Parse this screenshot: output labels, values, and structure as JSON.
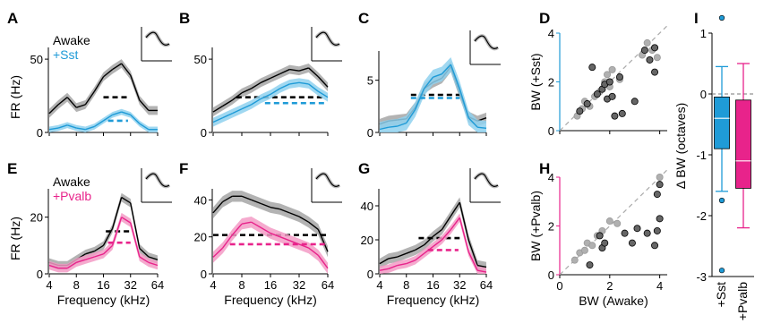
{
  "colors": {
    "awake": "#000000",
    "awake_band": "#a6a6a6",
    "sst": "#1f9bd7",
    "sst_band": "#8fd1ee",
    "pvalb": "#e8238b",
    "pvalb_band": "#f39bc6",
    "dots_gray": "#b0b0b0",
    "dots_dark": "#666666"
  },
  "chart_data": [
    {
      "panel": "A",
      "type": "line",
      "ylabel": "FR (Hz)",
      "xlabel": "",
      "ylim": [
        0,
        58
      ],
      "xlim": [
        4,
        64
      ],
      "yticks": [
        "0",
        "50"
      ],
      "xticks": [],
      "legend": [
        "Awake",
        "+Sst"
      ],
      "x_khz": [
        4,
        5.04,
        6.35,
        8,
        10.08,
        12.7,
        16,
        20.16,
        25.4,
        32,
        40.3,
        50.8,
        64
      ],
      "series": [
        {
          "name": "Awake",
          "color": "#000000",
          "band": "#a6a6a6",
          "values": [
            13,
            19,
            24,
            17,
            19,
            28,
            38,
            43,
            47,
            39,
            22,
            15,
            15
          ],
          "err": 3,
          "thresh": [
            16,
            31
          ],
          "thresh_val": 24
        },
        {
          "name": "+Sst",
          "color": "#1f9bd7",
          "band": "#8fd1ee",
          "values": [
            2,
            3,
            5,
            3,
            2,
            4,
            8,
            12,
            14,
            12,
            6,
            2,
            2
          ],
          "err": 2,
          "thresh": [
            18,
            30
          ],
          "thresh_val": 8
        }
      ]
    },
    {
      "panel": "B",
      "type": "line",
      "ylabel": "",
      "xlabel": "",
      "ylim": [
        0,
        58
      ],
      "xlim": [
        4,
        64
      ],
      "yticks": [
        "0",
        "50"
      ],
      "xticks": [],
      "legend": [],
      "x_khz": [
        4,
        5.04,
        6.35,
        8,
        10.08,
        12.7,
        16,
        20.16,
        25.4,
        32,
        40.3,
        50.8,
        64
      ],
      "series": [
        {
          "name": "Awake",
          "color": "#000000",
          "band": "#a6a6a6",
          "values": [
            14,
            18,
            22,
            27,
            30,
            34,
            37,
            40,
            43,
            42,
            44,
            38,
            31
          ],
          "err": 3,
          "thresh": [
            7,
            60
          ],
          "thresh_val": 24
        },
        {
          "name": "+Sst",
          "color": "#1f9bd7",
          "band": "#8fd1ee",
          "values": [
            7,
            10,
            13,
            16,
            19,
            23,
            26,
            30,
            33,
            34,
            33,
            28,
            24
          ],
          "err": 3,
          "thresh": [
            14,
            62
          ],
          "thresh_val": 20
        }
      ]
    },
    {
      "panel": "C",
      "type": "line",
      "ylabel": "",
      "xlabel": "",
      "ylim": [
        0,
        7.8
      ],
      "xlim": [
        4,
        64
      ],
      "yticks": [
        "0",
        "5"
      ],
      "xticks": [],
      "legend": [],
      "x_khz": [
        4,
        5.04,
        6.35,
        8,
        10.08,
        12.7,
        16,
        20.16,
        25.4,
        32,
        40.3,
        50.8,
        64
      ],
      "series": [
        {
          "name": "Awake",
          "color": "#000000",
          "band": "#a6a6a6",
          "values": [
            0.8,
            1.1,
            1.2,
            1.3,
            2.4,
            4.2,
            4.8,
            5.2,
            6.3,
            3.8,
            1.5,
            1.1,
            1.4
          ],
          "err": 0.5,
          "thresh": [
            9,
            32
          ],
          "thresh_val": 3.6
        },
        {
          "name": "+Sst",
          "color": "#1f9bd7",
          "band": "#8fd1ee",
          "values": [
            0.3,
            0.5,
            0.6,
            0.9,
            2.2,
            4.2,
            5.3,
            5.6,
            6.5,
            4.2,
            1.4,
            0.5,
            0.4
          ],
          "err": 0.7,
          "thresh": [
            9,
            32
          ],
          "thresh_val": 3.3
        }
      ]
    },
    {
      "panel": "E",
      "type": "line",
      "ylabel": "FR (Hz)",
      "xlabel": "Frequency (kHz)",
      "ylim": [
        0,
        30
      ],
      "xlim": [
        4,
        64
      ],
      "yticks": [
        "0",
        "20"
      ],
      "xticks": [
        "4",
        "8",
        "16",
        "32",
        "64"
      ],
      "legend": [
        "Awake",
        "+Pvalb"
      ],
      "x_khz": [
        4,
        5.04,
        6.35,
        8,
        10.08,
        12.7,
        16,
        20.16,
        25.4,
        32,
        40.3,
        50.8,
        64
      ],
      "series": [
        {
          "name": "Awake",
          "color": "#000000",
          "band": "#a6a6a6",
          "values": [
            4,
            3,
            3,
            5,
            7,
            8,
            10,
            16,
            27,
            25,
            9,
            6,
            5
          ],
          "err": 1.5,
          "thresh": [
            17,
            32
          ],
          "thresh_val": 15
        },
        {
          "name": "+Pvalb",
          "color": "#e8238b",
          "band": "#f39bc6",
          "values": [
            3,
            2,
            2,
            4,
            5,
            6,
            7,
            10,
            20,
            18,
            6,
            4,
            3
          ],
          "err": 1.5,
          "thresh": [
            18,
            32
          ],
          "thresh_val": 11
        }
      ]
    },
    {
      "panel": "F",
      "type": "line",
      "ylabel": "",
      "xlabel": "Frequency (kHz)",
      "ylim": [
        0,
        46
      ],
      "xlim": [
        4,
        64
      ],
      "yticks": [
        "0",
        "20",
        "40"
      ],
      "xticks": [
        "4",
        "8",
        "16",
        "32",
        "64"
      ],
      "legend": [],
      "x_khz": [
        4,
        5.04,
        6.35,
        8,
        10.08,
        12.7,
        16,
        20.16,
        25.4,
        32,
        40.3,
        50.8,
        64
      ],
      "series": [
        {
          "name": "Awake",
          "color": "#000000",
          "band": "#a6a6a6",
          "values": [
            33,
            39,
            42,
            42,
            40,
            38,
            36,
            35,
            33,
            31,
            28,
            24,
            12
          ],
          "err": 3,
          "thresh": [
            4,
            62
          ],
          "thresh_val": 21
        },
        {
          "name": "+Pvalb",
          "color": "#e8238b",
          "band": "#f39bc6",
          "values": [
            9,
            14,
            21,
            27,
            28,
            25,
            22,
            20,
            18,
            16,
            14,
            10,
            3
          ],
          "err": 3,
          "thresh": [
            6,
            62
          ],
          "thresh_val": 16
        }
      ]
    },
    {
      "panel": "G",
      "type": "line",
      "ylabel": "",
      "xlabel": "Frequency (kHz)",
      "ylim": [
        0,
        50
      ],
      "xlim": [
        4,
        64
      ],
      "yticks": [
        "0",
        "20",
        "40"
      ],
      "xticks": [
        "4",
        "8",
        "16",
        "32",
        "64"
      ],
      "legend": [],
      "x_khz": [
        4,
        5.04,
        6.35,
        8,
        10.08,
        12.7,
        16,
        20.16,
        25.4,
        32,
        40.3,
        50.8,
        64
      ],
      "series": [
        {
          "name": "Awake",
          "color": "#000000",
          "band": "#a6a6a6",
          "values": [
            6,
            9,
            10,
            12,
            14,
            17,
            22,
            26,
            34,
            42,
            20,
            5,
            4
          ],
          "err": 3,
          "thresh": [
            11,
            32
          ],
          "thresh_val": 21
        },
        {
          "name": "+Pvalb",
          "color": "#e8238b",
          "band": "#f39bc6",
          "values": [
            2,
            3,
            5,
            6,
            8,
            12,
            16,
            20,
            26,
            33,
            13,
            2,
            1
          ],
          "err": 2.5,
          "thresh": [
            14,
            31
          ],
          "thresh_val": 14
        }
      ]
    },
    {
      "panel": "D",
      "type": "scatter",
      "xlabel": "",
      "ylabel": "BW (+Sst)",
      "xlim": [
        0,
        4.3
      ],
      "ylim": [
        0,
        4
      ],
      "xticks": [],
      "yticks": [
        "0",
        "2",
        "4"
      ],
      "color": "#1f9bd7",
      "points": [
        {
          "x": 0.7,
          "y": 0.6,
          "dark": false
        },
        {
          "x": 0.9,
          "y": 0.9,
          "dark": false
        },
        {
          "x": 1.0,
          "y": 1.2,
          "dark": false
        },
        {
          "x": 1.2,
          "y": 1.0,
          "dark": false
        },
        {
          "x": 1.4,
          "y": 1.4,
          "dark": false
        },
        {
          "x": 1.6,
          "y": 1.6,
          "dark": false
        },
        {
          "x": 1.8,
          "y": 2.0,
          "dark": false
        },
        {
          "x": 2.0,
          "y": 1.8,
          "dark": false
        },
        {
          "x": 2.1,
          "y": 2.5,
          "dark": false
        },
        {
          "x": 2.4,
          "y": 2.1,
          "dark": false
        },
        {
          "x": 3.3,
          "y": 3.1,
          "dark": false
        },
        {
          "x": 3.5,
          "y": 3.6,
          "dark": false
        },
        {
          "x": 3.7,
          "y": 3.3,
          "dark": false
        },
        {
          "x": 3.9,
          "y": 3.0,
          "dark": false
        },
        {
          "x": 1.9,
          "y": 2.3,
          "dark": false
        },
        {
          "x": 0.8,
          "y": 0.8,
          "dark": true
        },
        {
          "x": 1.1,
          "y": 1.1,
          "dark": true
        },
        {
          "x": 1.3,
          "y": 2.6,
          "dark": true
        },
        {
          "x": 1.5,
          "y": 1.5,
          "dark": true
        },
        {
          "x": 1.7,
          "y": 1.7,
          "dark": true
        },
        {
          "x": 1.8,
          "y": 1.9,
          "dark": true
        },
        {
          "x": 1.9,
          "y": 1.3,
          "dark": true
        },
        {
          "x": 2.0,
          "y": 2.0,
          "dark": true
        },
        {
          "x": 2.1,
          "y": 1.4,
          "dark": true
        },
        {
          "x": 2.2,
          "y": 0.6,
          "dark": true
        },
        {
          "x": 2.4,
          "y": 2.2,
          "dark": true
        },
        {
          "x": 2.5,
          "y": 0.7,
          "dark": true
        },
        {
          "x": 3.0,
          "y": 1.2,
          "dark": true
        },
        {
          "x": 3.4,
          "y": 3.3,
          "dark": true
        },
        {
          "x": 3.6,
          "y": 2.9,
          "dark": true
        },
        {
          "x": 3.8,
          "y": 2.4,
          "dark": true
        },
        {
          "x": 3.8,
          "y": 3.4,
          "dark": true
        }
      ]
    },
    {
      "panel": "H",
      "type": "scatter",
      "xlabel": "BW (Awake)",
      "ylabel": "BW (+Pvalb)",
      "xlim": [
        0,
        4.3
      ],
      "ylim": [
        0,
        4
      ],
      "xticks": [
        "0",
        "2",
        "4"
      ],
      "yticks": [
        "0",
        "2",
        "4"
      ],
      "color": "#e8238b",
      "points": [
        {
          "x": 0.6,
          "y": 0.6,
          "dark": false
        },
        {
          "x": 0.8,
          "y": 0.9,
          "dark": false
        },
        {
          "x": 1.0,
          "y": 1.0,
          "dark": false
        },
        {
          "x": 1.1,
          "y": 1.3,
          "dark": false
        },
        {
          "x": 1.3,
          "y": 1.2,
          "dark": false
        },
        {
          "x": 1.5,
          "y": 1.6,
          "dark": false
        },
        {
          "x": 1.7,
          "y": 1.8,
          "dark": false
        },
        {
          "x": 2.0,
          "y": 2.2,
          "dark": false
        },
        {
          "x": 2.3,
          "y": 2.1,
          "dark": false
        },
        {
          "x": 4.0,
          "y": 4.0,
          "dark": false
        },
        {
          "x": 1.2,
          "y": 0.4,
          "dark": true
        },
        {
          "x": 1.6,
          "y": 1.6,
          "dark": true
        },
        {
          "x": 1.7,
          "y": 1.1,
          "dark": true
        },
        {
          "x": 1.8,
          "y": 1.3,
          "dark": true
        },
        {
          "x": 2.6,
          "y": 1.7,
          "dark": true
        },
        {
          "x": 2.9,
          "y": 1.3,
          "dark": true
        },
        {
          "x": 3.1,
          "y": 1.9,
          "dark": true
        },
        {
          "x": 3.5,
          "y": 1.7,
          "dark": true
        },
        {
          "x": 3.8,
          "y": 1.2,
          "dark": true
        },
        {
          "x": 3.9,
          "y": 3.3,
          "dark": true
        },
        {
          "x": 3.9,
          "y": 1.8,
          "dark": true
        },
        {
          "x": 4.0,
          "y": 2.3,
          "dark": true
        },
        {
          "x": 4.0,
          "y": 3.7,
          "dark": true
        }
      ]
    },
    {
      "panel": "I",
      "type": "box",
      "ylabel": "Δ BW (octaves)",
      "ylim": [
        -3,
        1
      ],
      "yticks": [
        "1",
        "0",
        "-1",
        "-2",
        "-3"
      ],
      "categories": [
        "+Sst",
        "+Pvalb"
      ],
      "boxes": [
        {
          "name": "+Sst",
          "color": "#1f9bd7",
          "q1": -0.9,
          "median": -0.4,
          "q3": -0.05,
          "whisker_low": -1.6,
          "whisker_high": 0.45,
          "outliers": [
            1.25,
            -1.75,
            -2.9
          ]
        },
        {
          "name": "+Pvalb",
          "color": "#e8238b",
          "q1": -1.55,
          "median": -1.1,
          "q3": -0.1,
          "whisker_low": -2.2,
          "whisker_high": 0.5,
          "outliers": []
        }
      ]
    }
  ]
}
